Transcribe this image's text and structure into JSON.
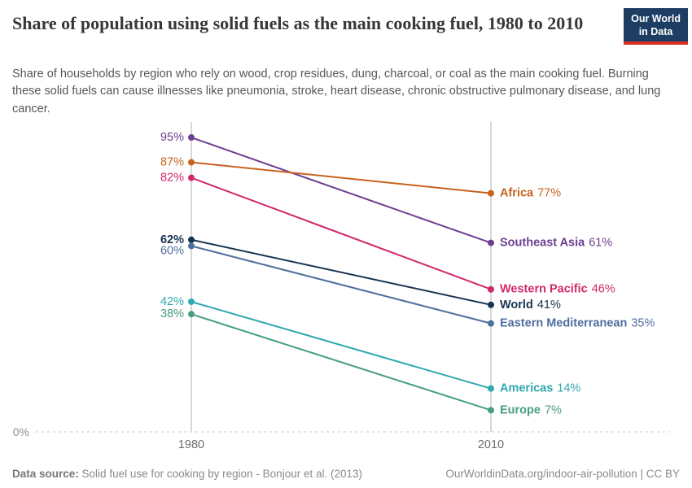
{
  "header": {
    "title": "Share of population using solid fuels as the main cooking fuel, 1980 to 2010",
    "subtitle": "Share of households by region who rely on wood, crop residues, dung, charcoal, or coal as the main cooking fuel. Burning these solid fuels can cause illnesses like pneumonia, stroke, heart disease, chronic obstructive pulmonary disease, and lung cancer.",
    "logo": {
      "line1": "Our World",
      "line2": "in Data",
      "bg_color": "#1d3d63",
      "accent_color": "#dc3022"
    }
  },
  "chart_data": {
    "type": "line",
    "x": [
      1980,
      2010
    ],
    "x_tick_labels": [
      "1980",
      "2010"
    ],
    "ylim": [
      0,
      100
    ],
    "baseline_label": "0%",
    "grid": "two vertical year gridlines, dotted zero baseline",
    "legend_position": "labels at line endpoints",
    "series": [
      {
        "name": "Southeast Asia",
        "values": [
          95,
          61
        ],
        "color": "#6d3e91",
        "bold": false
      },
      {
        "name": "Africa",
        "values": [
          87,
          77
        ],
        "color": "#c8621f",
        "bold": false
      },
      {
        "name": "Western Pacific",
        "values": [
          82,
          46
        ],
        "color": "#d2286b",
        "bold": false
      },
      {
        "name": "World",
        "values": [
          62,
          41
        ],
        "color": "#17344f",
        "bold": true
      },
      {
        "name": "Eastern Mediterranean",
        "values": [
          60,
          35
        ],
        "color": "#4f6ea0",
        "bold": false
      },
      {
        "name": "Americas",
        "values": [
          42,
          14
        ],
        "color": "#2fa8b0",
        "bold": false
      },
      {
        "name": "Europe",
        "values": [
          38,
          7
        ],
        "color": "#469e80",
        "bold": false
      }
    ]
  },
  "footer": {
    "source_label": "Data source:",
    "source_text": "Solid fuel use for cooking by region - Bonjour et al. (2013)",
    "link_text": "OurWorldinData.org/indoor-air-pollution | CC BY"
  }
}
